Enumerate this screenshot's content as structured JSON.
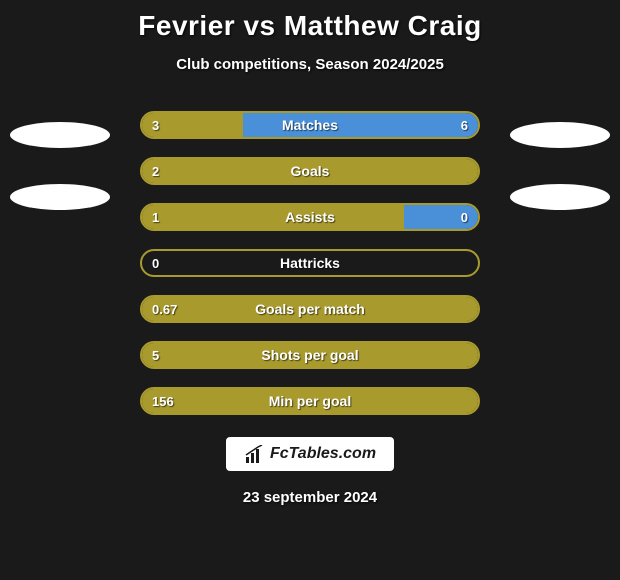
{
  "title": "Fevrier vs Matthew Craig",
  "subtitle": "Club competitions, Season 2024/2025",
  "date": "23 september 2024",
  "logo_text": "FcTables.com",
  "colors": {
    "background": "#1a1a1a",
    "olive": "#a99a2e",
    "blue": "#4a90d9",
    "text": "#ffffff",
    "oval": "#ffffff",
    "logo_bg": "#ffffff",
    "logo_text": "#1a1a1a"
  },
  "bars": [
    {
      "label": "Matches",
      "left_val": "3",
      "right_val": "6",
      "left_color": "#a99a2e",
      "right_color": "#4a90d9",
      "border_color": "#a99a2e",
      "left_pct": 30,
      "right_pct": 70
    },
    {
      "label": "Goals",
      "left_val": "2",
      "right_val": "",
      "left_color": "#a99a2e",
      "right_color": "transparent",
      "border_color": "#a99a2e",
      "left_pct": 100,
      "right_pct": 0
    },
    {
      "label": "Assists",
      "left_val": "1",
      "right_val": "0",
      "left_color": "#a99a2e",
      "right_color": "#4a90d9",
      "border_color": "#a99a2e",
      "left_pct": 78,
      "right_pct": 22
    },
    {
      "label": "Hattricks",
      "left_val": "0",
      "right_val": "",
      "left_color": "transparent",
      "right_color": "transparent",
      "border_color": "#a99a2e",
      "left_pct": 0,
      "right_pct": 0
    },
    {
      "label": "Goals per match",
      "left_val": "0.67",
      "right_val": "",
      "left_color": "#a99a2e",
      "right_color": "transparent",
      "border_color": "#a99a2e",
      "left_pct": 100,
      "right_pct": 0
    },
    {
      "label": "Shots per goal",
      "left_val": "5",
      "right_val": "",
      "left_color": "#a99a2e",
      "right_color": "transparent",
      "border_color": "#a99a2e",
      "left_pct": 100,
      "right_pct": 0
    },
    {
      "label": "Min per goal",
      "left_val": "156",
      "right_val": "",
      "left_color": "#a99a2e",
      "right_color": "transparent",
      "border_color": "#a99a2e",
      "left_pct": 100,
      "right_pct": 0
    }
  ]
}
